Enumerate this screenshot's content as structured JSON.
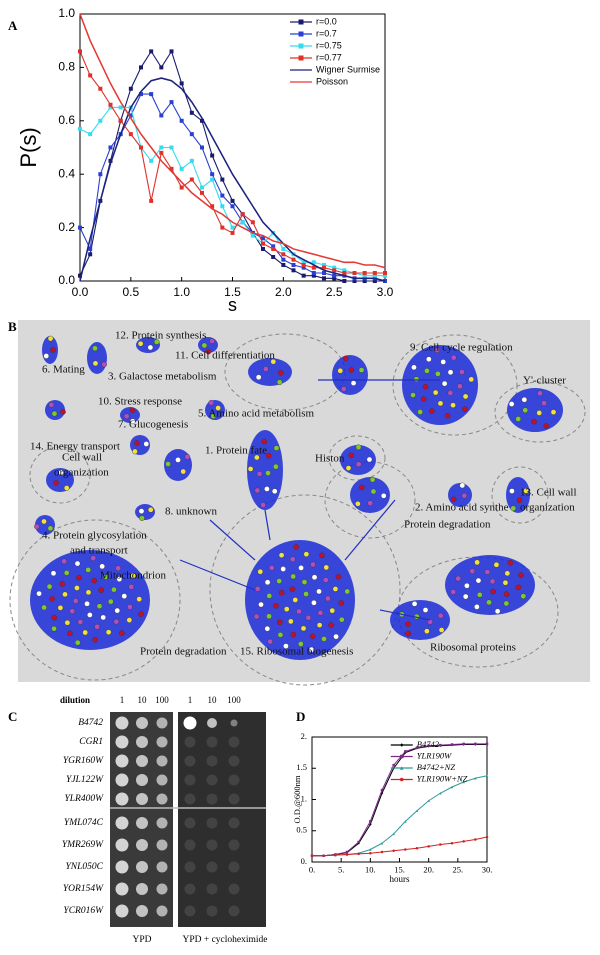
{
  "panel_labels": [
    "A",
    "B",
    "C",
    "D"
  ],
  "chart_data": [
    {
      "type": "line",
      "xlabel": "s",
      "ylabel": "P(s)",
      "legend": "upper right",
      "xlim": [
        0,
        3
      ],
      "ylim": [
        0,
        1
      ],
      "xticks": [
        {
          "value": 0,
          "label": "0.0"
        },
        {
          "value": 0.5,
          "label": "0.5"
        },
        {
          "value": 1,
          "label": "1.0"
        },
        {
          "value": 1.5,
          "label": "1.5"
        },
        {
          "value": 2,
          "label": "2.0"
        },
        {
          "value": 2.5,
          "label": "2.5"
        },
        {
          "value": 3,
          "label": "3.0"
        }
      ],
      "yticks": [
        {
          "value": 0,
          "label": "0.0"
        },
        {
          "value": 0.2,
          "label": "0.2"
        },
        {
          "value": 0.4,
          "label": "0.4"
        },
        {
          "value": 0.6,
          "label": "0.6"
        },
        {
          "value": 0.8,
          "label": "0.8"
        },
        {
          "value": 1,
          "label": "1.0"
        }
      ],
      "x": [
        0,
        0.1,
        0.2,
        0.3,
        0.4,
        0.5,
        0.6,
        0.7,
        0.8,
        0.9,
        1,
        1.1,
        1.2,
        1.3,
        1.4,
        1.5,
        1.6,
        1.7,
        1.8,
        1.9,
        2,
        2.1,
        2.2,
        2.3,
        2.4,
        2.5,
        2.6,
        2.7,
        2.8,
        2.9,
        3
      ],
      "series": [
        {
          "name": "r=0.0",
          "color": "#1a1a6e",
          "marker": "square",
          "values": [
            0.02,
            0.1,
            0.3,
            0.45,
            0.6,
            0.72,
            0.8,
            0.86,
            0.8,
            0.86,
            0.74,
            0.63,
            0.6,
            0.47,
            0.38,
            0.3,
            0.25,
            0.18,
            0.12,
            0.09,
            0.06,
            0.04,
            0.02,
            0.02,
            0.01,
            0.01,
            0,
            0,
            0,
            0,
            0
          ]
        },
        {
          "name": "r=0.7",
          "color": "#2a3fd4",
          "marker": "square",
          "values": [
            0.2,
            0.12,
            0.4,
            0.5,
            0.55,
            0.62,
            0.7,
            0.7,
            0.62,
            0.67,
            0.6,
            0.55,
            0.5,
            0.4,
            0.32,
            0.28,
            0.22,
            0.18,
            0.16,
            0.13,
            0.08,
            0.06,
            0.05,
            0.03,
            0.03,
            0.02,
            0.02,
            0.01,
            0.01,
            0.01,
            0
          ]
        },
        {
          "name": "r=0.75",
          "color": "#33dcef",
          "marker": "square",
          "values": [
            0.57,
            0.55,
            0.6,
            0.65,
            0.65,
            0.65,
            0.5,
            0.45,
            0.5,
            0.5,
            0.42,
            0.45,
            0.35,
            0.38,
            0.28,
            0.2,
            0.22,
            0.17,
            0.14,
            0.18,
            0.12,
            0.1,
            0.07,
            0.07,
            0.06,
            0.05,
            0.04,
            0.03,
            0.02,
            0.02,
            0.02
          ]
        },
        {
          "name": "r=0.77",
          "color": "#e0302a",
          "marker": "square",
          "values": [
            0.86,
            0.77,
            0.72,
            0.66,
            0.6,
            0.55,
            0.5,
            0.3,
            0.48,
            0.42,
            0.35,
            0.38,
            0.33,
            0.28,
            0.2,
            0.18,
            0.25,
            0.22,
            0.14,
            0.12,
            0.1,
            0.08,
            0.06,
            0.05,
            0.05,
            0.04,
            0.03,
            0.03,
            0.03,
            0.03,
            0.03
          ]
        },
        {
          "name": "Wigner Surmise",
          "color": "#1a237e",
          "values": [
            0,
            0.16,
            0.3,
            0.44,
            0.55,
            0.65,
            0.71,
            0.75,
            0.76,
            0.75,
            0.72,
            0.67,
            0.61,
            0.54,
            0.47,
            0.4,
            0.34,
            0.28,
            0.22,
            0.18,
            0.14,
            0.1,
            0.08,
            0.06,
            0.04,
            0.03,
            0.02,
            0.01,
            0.01,
            0.01,
            0
          ]
        },
        {
          "name": "Poisson",
          "color": "#e53935",
          "values": [
            1,
            0.9,
            0.82,
            0.74,
            0.67,
            0.61,
            0.55,
            0.5,
            0.45,
            0.41,
            0.37,
            0.33,
            0.3,
            0.27,
            0.25,
            0.22,
            0.2,
            0.18,
            0.17,
            0.15,
            0.14,
            0.12,
            0.11,
            0.1,
            0.09,
            0.08,
            0.07,
            0.07,
            0.06,
            0.06,
            0.05
          ]
        }
      ]
    },
    {
      "type": "line",
      "xlabel": "hours",
      "ylabel": "O.D.@600nm",
      "legend": "upper left",
      "xlim": [
        0,
        30
      ],
      "ylim": [
        0,
        2
      ],
      "xticks": [
        {
          "value": 0,
          "label": "0."
        },
        {
          "value": 5,
          "label": "5."
        },
        {
          "value": 10,
          "label": "10."
        },
        {
          "value": 15,
          "label": "15."
        },
        {
          "value": 20,
          "label": "20."
        },
        {
          "value": 25,
          "label": "25."
        },
        {
          "value": 30,
          "label": "30."
        }
      ],
      "yticks": [
        {
          "value": 0,
          "label": "0."
        },
        0.5,
        {
          "value": 1,
          "label": "1."
        },
        1.5,
        {
          "value": 2,
          "label": "2."
        }
      ],
      "x": [
        0,
        2,
        4,
        6,
        8,
        10,
        12,
        14,
        16,
        18,
        20,
        22,
        24,
        26,
        28,
        30
      ],
      "series": [
        {
          "name": "B4742",
          "color": "#000000",
          "marker": "diamond",
          "values": [
            0.1,
            0.1,
            0.12,
            0.15,
            0.3,
            0.6,
            1.1,
            1.5,
            1.75,
            1.82,
            1.85,
            1.86,
            1.87,
            1.88,
            1.88,
            1.88
          ]
        },
        {
          "name": "YLR190W",
          "color": "#7b2a8a",
          "marker": "square",
          "values": [
            0.1,
            0.1,
            0.12,
            0.16,
            0.32,
            0.65,
            1.15,
            1.55,
            1.77,
            1.83,
            1.86,
            1.87,
            1.88,
            1.89,
            1.89,
            1.89
          ]
        },
        {
          "name": "B4742+NZ",
          "color": "#2e9a98",
          "marker": "triangle",
          "values": [
            0.1,
            0.1,
            0.11,
            0.12,
            0.14,
            0.2,
            0.3,
            0.45,
            0.65,
            0.82,
            0.98,
            1.1,
            1.2,
            1.28,
            1.34,
            1.38
          ]
        },
        {
          "name": "YLR190W+NZ",
          "color": "#d42020",
          "marker": "circle",
          "values": [
            0.1,
            0.1,
            0.11,
            0.12,
            0.13,
            0.14,
            0.16,
            0.18,
            0.2,
            0.22,
            0.25,
            0.28,
            0.3,
            0.33,
            0.36,
            0.4
          ]
        }
      ]
    }
  ],
  "network": {
    "labels": [
      {
        "lines": [
          "12. Protein synthesis"
        ]
      },
      {
        "lines": [
          "11. Cell differentiation"
        ]
      },
      {
        "lines": [
          "9. Cell cycle regulation"
        ]
      },
      {
        "lines": [
          "Y'-cluster"
        ]
      },
      {
        "lines": [
          "6. Mating"
        ]
      },
      {
        "lines": [
          "3. Galactose metabolism"
        ]
      },
      {
        "lines": [
          "10. Stress response"
        ]
      },
      {
        "lines": [
          "5. Amino acid metabolism"
        ]
      },
      {
        "lines": [
          "7. Glucogenesis"
        ]
      },
      {
        "lines": [
          "1. Protein fate"
        ]
      },
      {
        "lines": [
          "14. Energy transport"
        ]
      },
      {
        "lines": [
          "Histon"
        ]
      },
      {
        "lines": [
          "Cell wall",
          "organization"
        ]
      },
      {
        "lines": [
          "2. Amino acid synthe"
        ]
      },
      {
        "lines": [
          "13. Cell wall",
          "organization"
        ]
      },
      {
        "lines": [
          "8. unknown"
        ]
      },
      {
        "lines": [
          "4. Protein glycosylation",
          "and transport"
        ]
      },
      {
        "lines": [
          "Protein degradation"
        ]
      },
      {
        "lines": [
          "Mitochondrion"
        ]
      },
      {
        "lines": [
          "Protein degradation"
        ]
      },
      {
        "lines": [
          "15. Ribosomal biogenesis"
        ]
      },
      {
        "lines": [
          "Ribosomal proteins"
        ]
      }
    ]
  },
  "plates": {
    "dilution_label": "dilution",
    "dilutions": [
      "1",
      "10",
      "100"
    ],
    "strains": [
      "B4742",
      "CGR1",
      "YGR160W",
      "YJL122W",
      "YLR400W",
      "YML074C",
      "YMR269W",
      "YNL050C",
      "YOR154W",
      "YCR016W"
    ],
    "conditions": [
      "YPD",
      "YPD + cycloheximide"
    ]
  }
}
